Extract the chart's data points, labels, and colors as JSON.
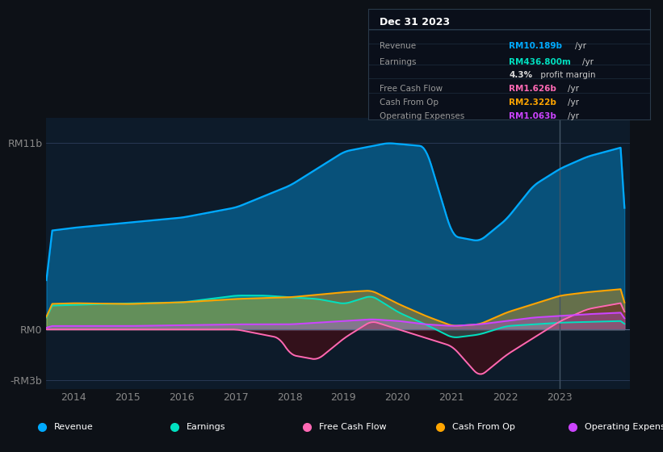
{
  "bg_color": "#0d1117",
  "chart_bg": "#0d1b2a",
  "title": "Dec 31 2023",
  "ylim": [
    -3.5,
    12.5
  ],
  "xlim": [
    2013.5,
    2024.3
  ],
  "x_ticks": [
    2014,
    2015,
    2016,
    2017,
    2018,
    2019,
    2020,
    2021,
    2022,
    2023
  ],
  "tooltip": {
    "date": "Dec 31 2023",
    "revenue": "RM10.189b",
    "earnings": "RM436.800m",
    "profit_margin": "4.3%",
    "free_cash_flow": "RM1.626b",
    "cash_from_op": "RM2.322b",
    "operating_expenses": "RM1.063b"
  },
  "colors": {
    "revenue": "#00aaff",
    "earnings": "#00e0c0",
    "free_cash_flow": "#ff69b4",
    "cash_from_op": "#ffa500",
    "operating_expenses": "#cc44ff"
  },
  "legend": [
    {
      "label": "Revenue",
      "color": "#00aaff"
    },
    {
      "label": "Earnings",
      "color": "#00e0c0"
    },
    {
      "label": "Free Cash Flow",
      "color": "#ff69b4"
    },
    {
      "label": "Cash From Op",
      "color": "#ffa500"
    },
    {
      "label": "Operating Expenses",
      "color": "#cc44ff"
    }
  ]
}
